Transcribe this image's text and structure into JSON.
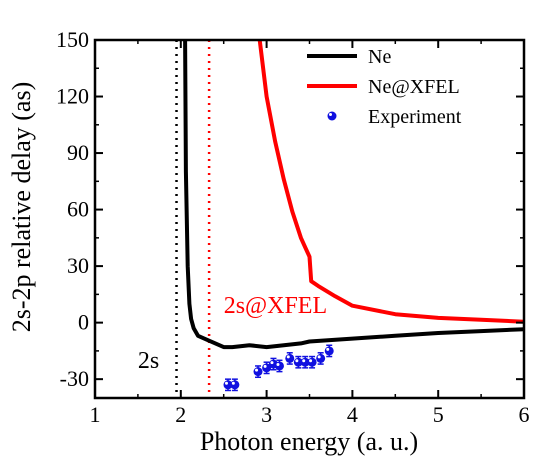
{
  "chart_data": {
    "type": "line",
    "xlabel": "Photon energy (a. u.)",
    "ylabel": "2s-2p relative delay (as)",
    "xlim": [
      1,
      6
    ],
    "ylim": [
      -40,
      150
    ],
    "xticks": [
      1,
      2,
      3,
      4,
      5,
      6
    ],
    "yticks": [
      -30,
      0,
      30,
      60,
      90,
      120,
      150
    ],
    "grid": false,
    "legend_position": "top-right",
    "series": [
      {
        "name": "Ne",
        "kind": "line",
        "color": "#000000",
        "x": [
          2.05,
          2.06,
          2.08,
          2.1,
          2.12,
          2.15,
          2.2,
          2.3,
          2.5,
          2.6,
          2.8,
          3.0,
          3.2,
          3.4,
          3.5,
          4.0,
          4.5,
          5.0,
          5.5,
          6.0
        ],
        "y": [
          150,
          80,
          30,
          10,
          2,
          -3,
          -7,
          -9,
          -13,
          -13,
          -12,
          -13,
          -12,
          -11,
          -10,
          -8.5,
          -7,
          -5.5,
          -4.5,
          -3.5
        ]
      },
      {
        "name": "Ne@XFEL",
        "kind": "line",
        "color": "#ff0000",
        "x": [
          2.92,
          3.0,
          3.1,
          3.2,
          3.3,
          3.4,
          3.45,
          3.5,
          3.52,
          3.6,
          3.8,
          4.0,
          4.5,
          5.0,
          5.5,
          6.0
        ],
        "y": [
          150,
          120,
          96,
          76,
          59,
          45,
          40,
          35,
          22,
          19.5,
          14,
          9,
          4.5,
          2.5,
          1.5,
          0.5
        ]
      },
      {
        "name": "Experiment",
        "kind": "scatter",
        "color": "#1010e0",
        "x": [
          2.55,
          2.63,
          2.9,
          3.0,
          3.08,
          3.15,
          3.27,
          3.37,
          3.45,
          3.53,
          3.63,
          3.73
        ],
        "y": [
          -33,
          -33,
          -26,
          -24,
          -22,
          -23,
          -19,
          -21,
          -21,
          -21,
          -19,
          -15
        ],
        "err": [
          3,
          3,
          3,
          3,
          3,
          3,
          3,
          3,
          3,
          3,
          3,
          3
        ]
      }
    ],
    "vlines": [
      {
        "x": 1.95,
        "color": "#000000",
        "style": "dotted"
      },
      {
        "x": 2.33,
        "color": "#ff0000",
        "style": "dotted"
      }
    ],
    "annotations": [
      {
        "text": "2s",
        "x": 1.5,
        "y": -24,
        "color": "#000000"
      },
      {
        "text": "2s@XFEL",
        "x": 2.5,
        "y": 5,
        "color": "#ff0000"
      }
    ]
  }
}
